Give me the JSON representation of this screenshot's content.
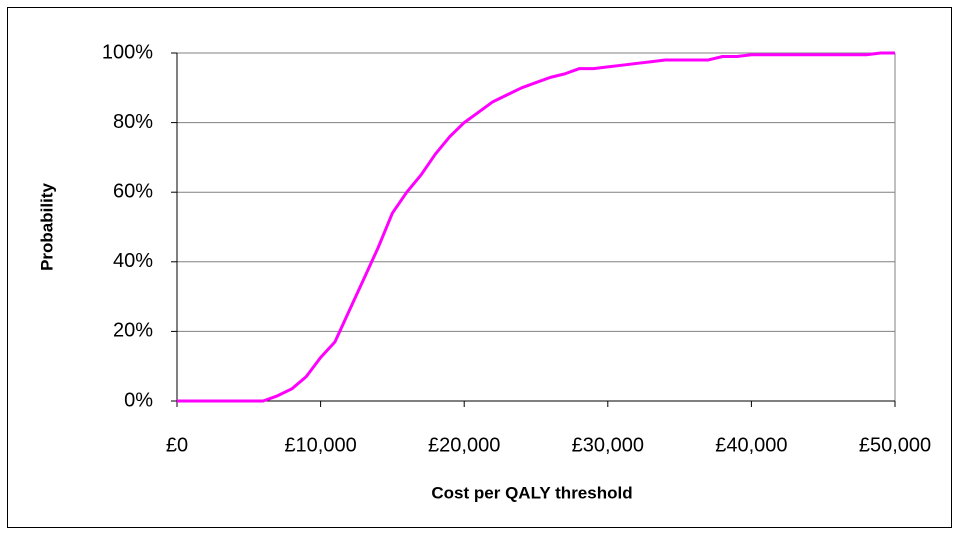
{
  "chart_data": {
    "type": "line",
    "x_label": "Cost per QALY threshold",
    "y_label": "Probability",
    "x": [
      0,
      1000,
      2000,
      3000,
      4000,
      5000,
      6000,
      7000,
      8000,
      9000,
      10000,
      11000,
      12000,
      13000,
      14000,
      15000,
      16000,
      17000,
      18000,
      19000,
      20000,
      21000,
      22000,
      23000,
      24000,
      25000,
      26000,
      27000,
      28000,
      29000,
      30000,
      31000,
      32000,
      33000,
      34000,
      35000,
      36000,
      37000,
      38000,
      39000,
      40000,
      41000,
      42000,
      43000,
      44000,
      45000,
      46000,
      47000,
      48000,
      49000,
      50000
    ],
    "series": [
      {
        "name": "Probability",
        "color": "#ff00ff",
        "values": [
          0,
          0,
          0,
          0,
          0,
          0,
          0,
          1.5,
          3.5,
          7,
          12.5,
          17,
          26,
          35,
          44,
          54,
          60,
          65,
          71,
          76,
          80,
          83,
          86,
          88,
          90,
          91.5,
          93,
          94,
          95.5,
          95.5,
          96,
          96.5,
          97,
          97.5,
          98,
          98,
          98,
          98,
          99,
          99,
          99.5,
          99.5,
          99.5,
          99.5,
          99.5,
          99.5,
          99.5,
          99.5,
          99.5,
          100,
          100
        ]
      }
    ],
    "xlim": [
      0,
      50000
    ],
    "xticks": [
      {
        "value": 0,
        "label": "£0"
      },
      {
        "value": 10000,
        "label": "£10,000"
      },
      {
        "value": 20000,
        "label": "£20,000"
      },
      {
        "value": 30000,
        "label": "£30,000"
      },
      {
        "value": 40000,
        "label": "£40,000"
      },
      {
        "value": 50000,
        "label": "£50,000"
      }
    ],
    "ylim": [
      0,
      100
    ],
    "yticks": [
      {
        "value": 0,
        "label": "0%"
      },
      {
        "value": 20,
        "label": "20%"
      },
      {
        "value": 40,
        "label": "40%"
      },
      {
        "value": 60,
        "label": "60%"
      },
      {
        "value": 80,
        "label": "80%"
      },
      {
        "value": 100,
        "label": "100%"
      }
    ],
    "grid": true
  }
}
